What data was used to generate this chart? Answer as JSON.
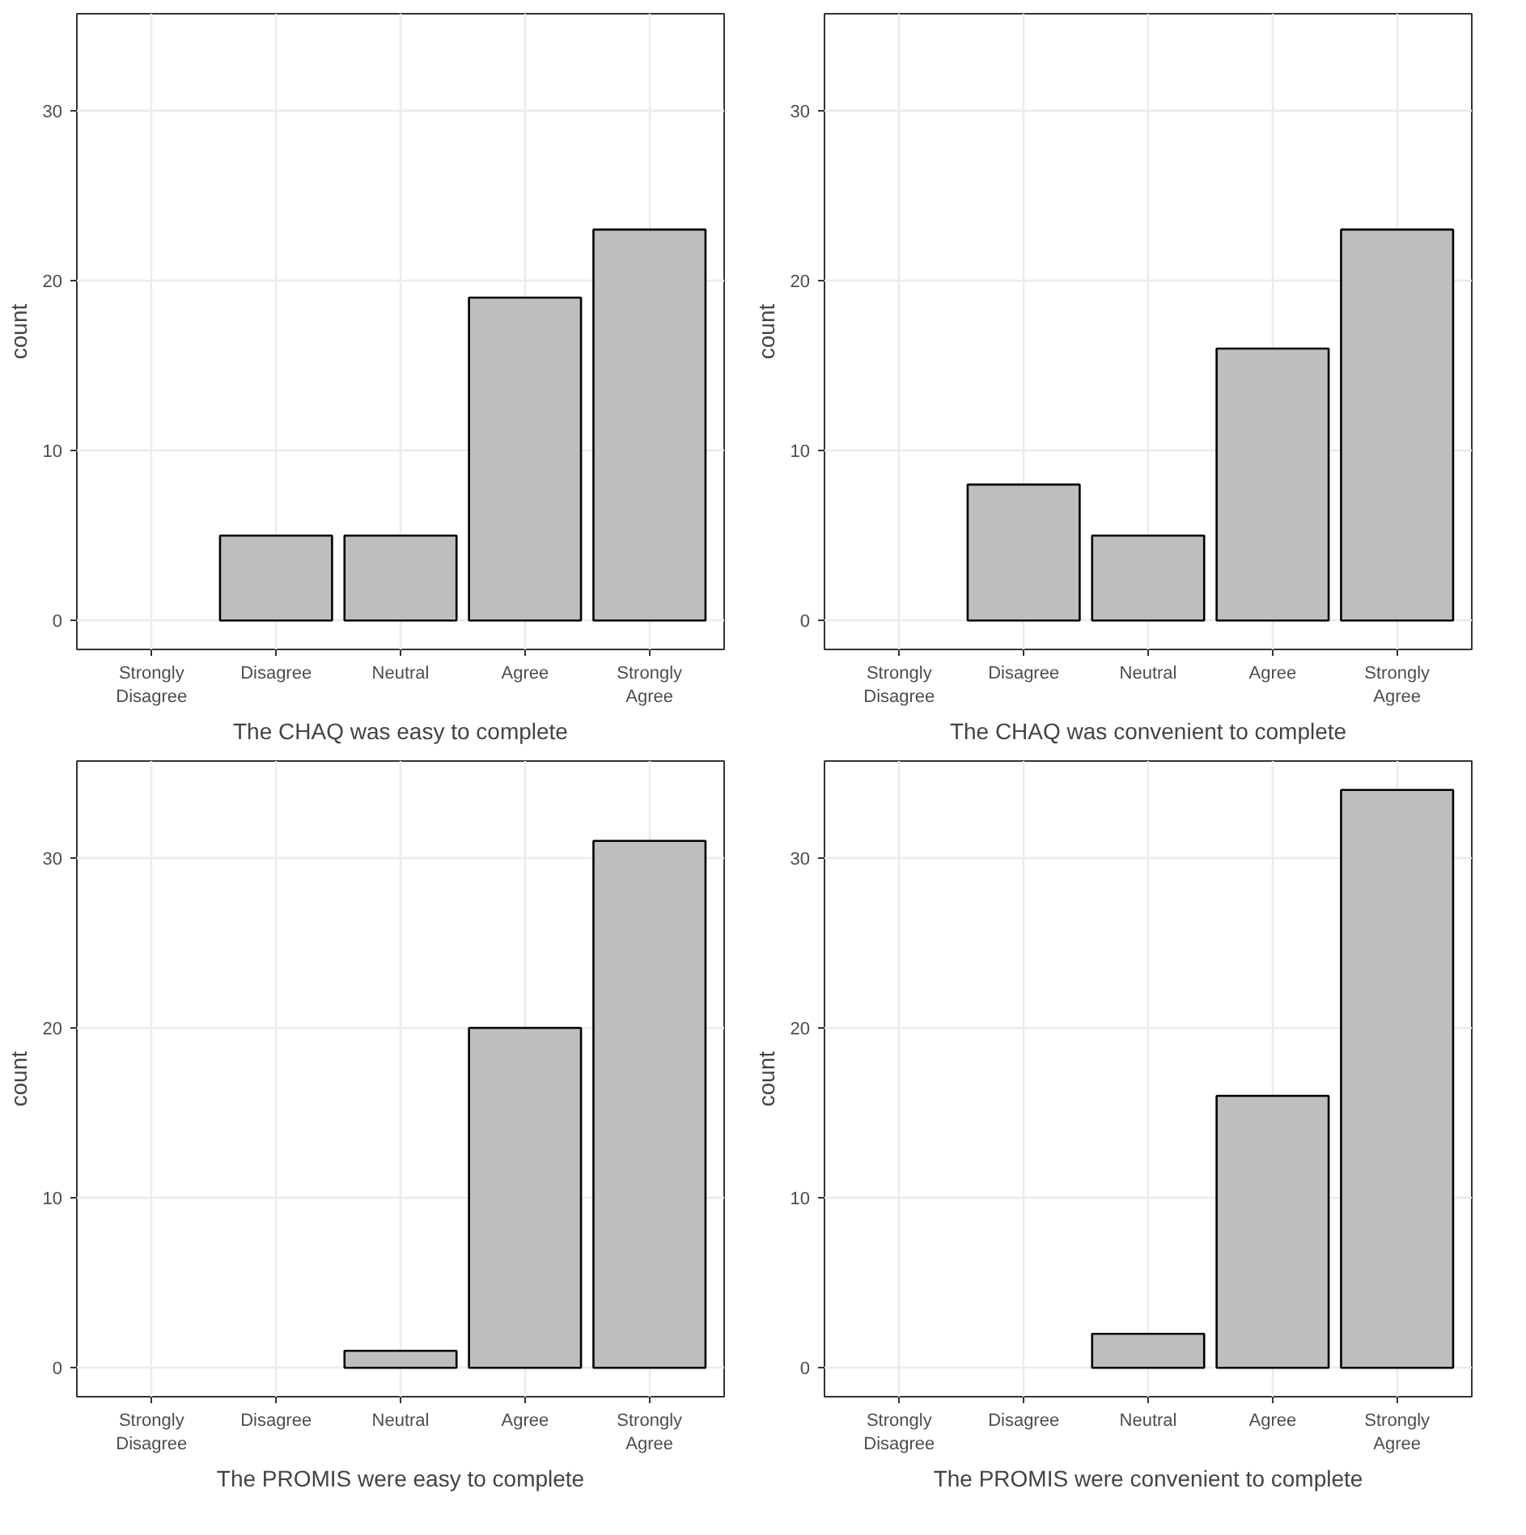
{
  "chart_data": [
    {
      "type": "bar",
      "xlabel": "The CHAQ was easy to complete",
      "ylabel": "count",
      "categories": [
        "Strongly Disagree",
        "Disagree",
        "Neutral",
        "Agree",
        "Strongly Agree"
      ],
      "values": [
        0,
        5,
        5,
        19,
        23
      ],
      "color": "#bebebe",
      "ylim": [
        -1.7,
        35.7
      ],
      "yticks": [
        0,
        10,
        20,
        30
      ],
      "grid": true
    },
    {
      "type": "bar",
      "xlabel": "The CHAQ was convenient to complete",
      "ylabel": "count",
      "categories": [
        "Strongly Disagree",
        "Disagree",
        "Neutral",
        "Agree",
        "Strongly Agree"
      ],
      "values": [
        0,
        8,
        5,
        16,
        23
      ],
      "color": "#bebebe",
      "ylim": [
        -1.7,
        35.7
      ],
      "yticks": [
        0,
        10,
        20,
        30
      ],
      "grid": true
    },
    {
      "type": "bar",
      "xlabel": "The PROMIS were easy to complete",
      "ylabel": "count",
      "categories": [
        "Strongly Disagree",
        "Disagree",
        "Neutral",
        "Agree",
        "Strongly Agree"
      ],
      "values": [
        0,
        0,
        1,
        20,
        31
      ],
      "color": "#bebebe",
      "ylim": [
        -1.7,
        35.7
      ],
      "yticks": [
        0,
        10,
        20,
        30
      ],
      "grid": true
    },
    {
      "type": "bar",
      "xlabel": "The PROMIS were convenient to complete",
      "ylabel": "count",
      "categories": [
        "Strongly Disagree",
        "Disagree",
        "Neutral",
        "Agree",
        "Strongly Agree"
      ],
      "values": [
        0,
        0,
        2,
        16,
        34
      ],
      "color": "#bebebe",
      "ylim": [
        -1.7,
        35.7
      ],
      "yticks": [
        0,
        10,
        20,
        30
      ],
      "grid": true
    }
  ]
}
